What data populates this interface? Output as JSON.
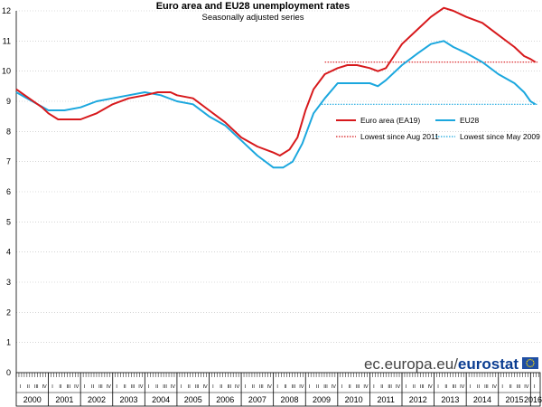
{
  "chart_data": {
    "type": "line",
    "title": "Euro area and EU28 unemployment rates",
    "subtitle": "Seasonally adjusted series",
    "ylim": [
      0,
      12
    ],
    "yticks": [
      0,
      1,
      2,
      3,
      4,
      5,
      6,
      7,
      8,
      9,
      10,
      11,
      12
    ],
    "start_year": 2000,
    "end_year": 2016,
    "year_labels": [
      "2000",
      "2001",
      "2002",
      "2003",
      "2004",
      "2005",
      "2006",
      "2007",
      "2008",
      "2009",
      "2010",
      "2011",
      "2012",
      "2013",
      "2014",
      "2015",
      "2016"
    ],
    "quarter_labels": [
      "I",
      "II",
      "III",
      "IV"
    ],
    "series": [
      {
        "name": "Euro area (EA19)",
        "color": "#d7191c",
        "points": [
          [
            2000.0,
            9.4
          ],
          [
            2000.4,
            9.1
          ],
          [
            2000.8,
            8.8
          ],
          [
            2001.0,
            8.6
          ],
          [
            2001.3,
            8.4
          ],
          [
            2001.7,
            8.4
          ],
          [
            2002.0,
            8.4
          ],
          [
            2002.5,
            8.6
          ],
          [
            2003.0,
            8.9
          ],
          [
            2003.5,
            9.1
          ],
          [
            2004.0,
            9.2
          ],
          [
            2004.4,
            9.3
          ],
          [
            2004.8,
            9.3
          ],
          [
            2005.0,
            9.2
          ],
          [
            2005.5,
            9.1
          ],
          [
            2006.0,
            8.7
          ],
          [
            2006.5,
            8.3
          ],
          [
            2007.0,
            7.8
          ],
          [
            2007.5,
            7.5
          ],
          [
            2008.0,
            7.3
          ],
          [
            2008.2,
            7.2
          ],
          [
            2008.5,
            7.4
          ],
          [
            2008.75,
            7.8
          ],
          [
            2009.0,
            8.7
          ],
          [
            2009.25,
            9.4
          ],
          [
            2009.6,
            9.9
          ],
          [
            2010.0,
            10.1
          ],
          [
            2010.3,
            10.2
          ],
          [
            2010.6,
            10.2
          ],
          [
            2011.0,
            10.1
          ],
          [
            2011.25,
            10.0
          ],
          [
            2011.5,
            10.1
          ],
          [
            2011.75,
            10.5
          ],
          [
            2012.0,
            10.9
          ],
          [
            2012.5,
            11.4
          ],
          [
            2012.9,
            11.8
          ],
          [
            2013.3,
            12.1
          ],
          [
            2013.6,
            12.0
          ],
          [
            2014.0,
            11.8
          ],
          [
            2014.5,
            11.6
          ],
          [
            2015.0,
            11.2
          ],
          [
            2015.5,
            10.8
          ],
          [
            2015.8,
            10.5
          ],
          [
            2016.0,
            10.4
          ],
          [
            2016.15,
            10.3
          ]
        ]
      },
      {
        "name": "EU28",
        "color": "#1ba7de",
        "points": [
          [
            2000.0,
            9.3
          ],
          [
            2000.5,
            9.0
          ],
          [
            2001.0,
            8.7
          ],
          [
            2001.5,
            8.7
          ],
          [
            2002.0,
            8.8
          ],
          [
            2002.5,
            9.0
          ],
          [
            2003.0,
            9.1
          ],
          [
            2003.5,
            9.2
          ],
          [
            2004.0,
            9.3
          ],
          [
            2004.5,
            9.2
          ],
          [
            2005.0,
            9.0
          ],
          [
            2005.5,
            8.9
          ],
          [
            2006.0,
            8.5
          ],
          [
            2006.5,
            8.2
          ],
          [
            2007.0,
            7.7
          ],
          [
            2007.5,
            7.2
          ],
          [
            2008.0,
            6.8
          ],
          [
            2008.3,
            6.8
          ],
          [
            2008.6,
            7.0
          ],
          [
            2008.9,
            7.6
          ],
          [
            2009.25,
            8.6
          ],
          [
            2009.6,
            9.1
          ],
          [
            2010.0,
            9.6
          ],
          [
            2010.5,
            9.6
          ],
          [
            2011.0,
            9.6
          ],
          [
            2011.25,
            9.5
          ],
          [
            2011.5,
            9.7
          ],
          [
            2012.0,
            10.2
          ],
          [
            2012.5,
            10.6
          ],
          [
            2012.9,
            10.9
          ],
          [
            2013.3,
            11.0
          ],
          [
            2013.6,
            10.8
          ],
          [
            2014.0,
            10.6
          ],
          [
            2014.5,
            10.3
          ],
          [
            2015.0,
            9.9
          ],
          [
            2015.5,
            9.6
          ],
          [
            2015.8,
            9.3
          ],
          [
            2016.0,
            9.0
          ],
          [
            2016.15,
            8.9
          ]
        ]
      }
    ],
    "reference_lines": [
      {
        "name": "Lowest since Aug 2011",
        "color": "#d7191c",
        "value": 10.3,
        "from_year": 2009.6
      },
      {
        "name": "Lowest since May 2009",
        "color": "#1ba7de",
        "value": 8.9,
        "from_year": 2009.5
      }
    ],
    "source": {
      "domain": "ec.europa.eu/",
      "brand": "eurostat"
    },
    "colors": {
      "grid": "#bbbbbb",
      "axis": "#000000",
      "brand": "#0b3d91",
      "eu_flag": "#1f4ea3",
      "eu_stars": "#ffdd00"
    }
  }
}
